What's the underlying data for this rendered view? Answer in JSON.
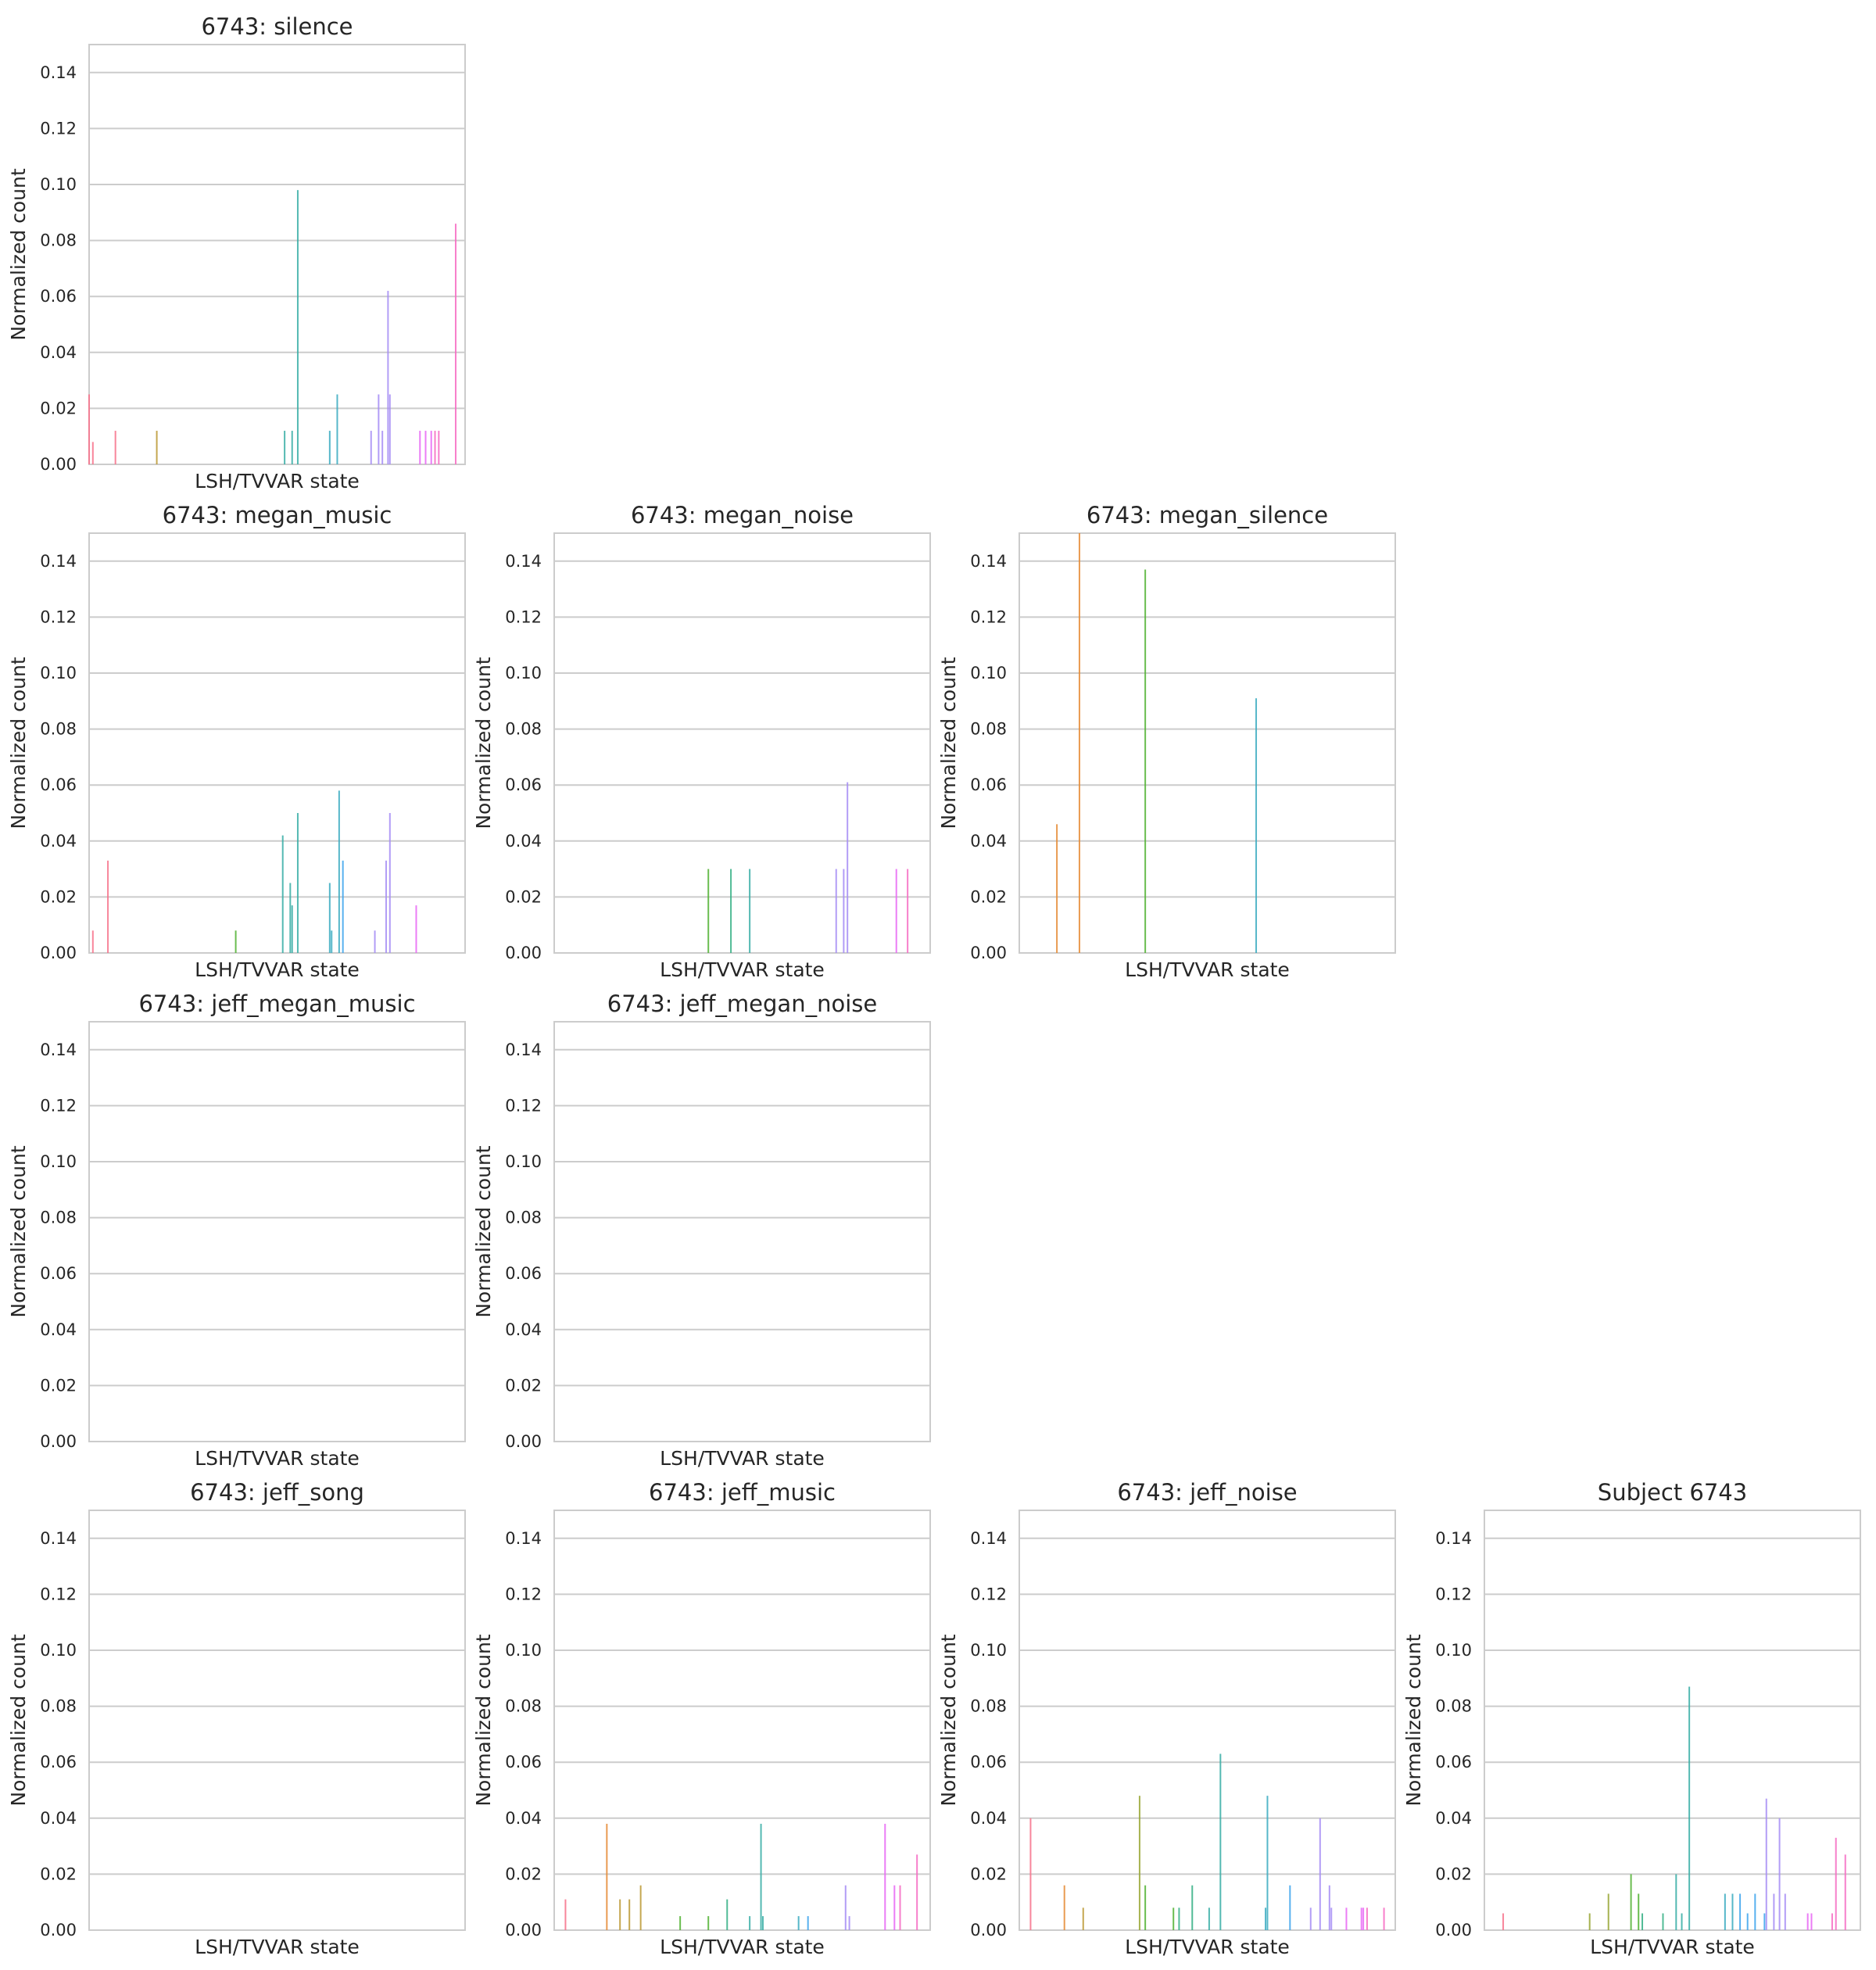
{
  "chart_data": [
    {
      "type": "bar",
      "title": "6743: silence",
      "xlabel": "LSH/TVVAR state",
      "ylabel": "Normalized count",
      "ylim": [
        0,
        0.15
      ],
      "yticks": [
        "0.00",
        "0.02",
        "0.04",
        "0.06",
        "0.08",
        "0.10",
        "0.12",
        "0.14"
      ],
      "x": [
        0.0,
        0.01,
        0.07,
        0.18,
        0.52,
        0.54,
        0.555,
        0.64,
        0.66,
        0.75,
        0.77,
        0.78,
        0.795,
        0.8,
        0.88,
        0.895,
        0.91,
        0.92,
        0.93,
        0.975
      ],
      "values": [
        0.025,
        0.008,
        0.012,
        0.012,
        0.012,
        0.012,
        0.098,
        0.012,
        0.025,
        0.012,
        0.025,
        0.012,
        0.062,
        0.025,
        0.012,
        0.012,
        0.012,
        0.012,
        0.012,
        0.086
      ]
    },
    {
      "type": "bar",
      "title": "6743: megan_music",
      "xlabel": "LSH/TVVAR state",
      "ylabel": "Normalized count",
      "ylim": [
        0,
        0.15
      ],
      "yticks": [
        "0.00",
        "0.02",
        "0.04",
        "0.06",
        "0.08",
        "0.10",
        "0.12",
        "0.14"
      ],
      "x": [
        0.01,
        0.05,
        0.39,
        0.515,
        0.535,
        0.54,
        0.555,
        0.64,
        0.645,
        0.665,
        0.675,
        0.76,
        0.79,
        0.8,
        0.87
      ],
      "values": [
        0.008,
        0.033,
        0.008,
        0.042,
        0.025,
        0.017,
        0.05,
        0.025,
        0.008,
        0.058,
        0.033,
        0.008,
        0.033,
        0.05,
        0.017
      ]
    },
    {
      "type": "bar",
      "title": "6743: megan_noise",
      "xlabel": "LSH/TVVAR state",
      "ylabel": "Normalized count",
      "ylim": [
        0,
        0.15
      ],
      "yticks": [
        "0.00",
        "0.02",
        "0.04",
        "0.06",
        "0.08",
        "0.10",
        "0.12",
        "0.14"
      ],
      "x": [
        0.41,
        0.47,
        0.52,
        0.75,
        0.77,
        0.78,
        0.91,
        0.94
      ],
      "values": [
        0.03,
        0.03,
        0.03,
        0.03,
        0.03,
        0.061,
        0.03,
        0.03
      ]
    },
    {
      "type": "bar",
      "title": "6743: megan_silence",
      "xlabel": "LSH/TVVAR state",
      "ylabel": "Normalized count",
      "ylim": [
        0,
        0.15
      ],
      "yticks": [
        "0.00",
        "0.02",
        "0.04",
        "0.06",
        "0.08",
        "0.10",
        "0.12",
        "0.14"
      ],
      "x": [
        0.1,
        0.16,
        0.335,
        0.63
      ],
      "values": [
        0.046,
        0.15,
        0.137,
        0.091
      ]
    },
    {
      "type": "bar",
      "title": "6743: jeff_megan_music",
      "xlabel": "LSH/TVVAR state",
      "ylabel": "Normalized count",
      "ylim": [
        0,
        0.15
      ],
      "yticks": [
        "0.00",
        "0.02",
        "0.04",
        "0.06",
        "0.08",
        "0.10",
        "0.12",
        "0.14"
      ],
      "x": [],
      "values": []
    },
    {
      "type": "bar",
      "title": "6743: jeff_megan_noise",
      "xlabel": "LSH/TVVAR state",
      "ylabel": "Normalized count",
      "ylim": [
        0,
        0.15
      ],
      "yticks": [
        "0.00",
        "0.02",
        "0.04",
        "0.06",
        "0.08",
        "0.10",
        "0.12",
        "0.14"
      ],
      "x": [],
      "values": []
    },
    {
      "type": "bar",
      "title": "6743: jeff_song",
      "xlabel": "LSH/TVVAR state",
      "ylabel": "Normalized count",
      "ylim": [
        0,
        0.15
      ],
      "yticks": [
        "0.00",
        "0.02",
        "0.04",
        "0.06",
        "0.08",
        "0.10",
        "0.12",
        "0.14"
      ],
      "x": [],
      "values": []
    },
    {
      "type": "bar",
      "title": "6743: jeff_music",
      "xlabel": "LSH/TVVAR state",
      "ylabel": "Normalized count",
      "ylim": [
        0,
        0.15
      ],
      "yticks": [
        "0.00",
        "0.02",
        "0.04",
        "0.06",
        "0.08",
        "0.10",
        "0.12",
        "0.14"
      ],
      "x": [
        0.03,
        0.14,
        0.175,
        0.2,
        0.23,
        0.335,
        0.41,
        0.46,
        0.52,
        0.55,
        0.555,
        0.65,
        0.675,
        0.775,
        0.785,
        0.88,
        0.905,
        0.92,
        0.965
      ],
      "values": [
        0.011,
        0.038,
        0.011,
        0.011,
        0.016,
        0.005,
        0.005,
        0.011,
        0.005,
        0.038,
        0.005,
        0.005,
        0.005,
        0.016,
        0.005,
        0.038,
        0.016,
        0.016,
        0.027
      ]
    },
    {
      "type": "bar",
      "title": "6743: jeff_noise",
      "xlabel": "LSH/TVVAR state",
      "ylabel": "Normalized count",
      "ylim": [
        0,
        0.15
      ],
      "yticks": [
        "0.00",
        "0.02",
        "0.04",
        "0.06",
        "0.08",
        "0.10",
        "0.12",
        "0.14"
      ],
      "x": [
        0.03,
        0.12,
        0.17,
        0.32,
        0.335,
        0.41,
        0.425,
        0.46,
        0.505,
        0.535,
        0.655,
        0.66,
        0.72,
        0.775,
        0.8,
        0.825,
        0.83,
        0.87,
        0.91,
        0.915,
        0.925,
        0.97
      ],
      "values": [
        0.04,
        0.016,
        0.008,
        0.048,
        0.016,
        0.008,
        0.008,
        0.016,
        0.008,
        0.063,
        0.008,
        0.048,
        0.016,
        0.008,
        0.04,
        0.016,
        0.008,
        0.008,
        0.008,
        0.008,
        0.008,
        0.008
      ]
    },
    {
      "type": "bar",
      "title": "Subject 6743",
      "xlabel": "LSH/TVVAR state",
      "ylabel": "Normalized count",
      "ylim": [
        0,
        0.15
      ],
      "yticks": [
        "0.00",
        "0.02",
        "0.04",
        "0.06",
        "0.08",
        "0.10",
        "0.12",
        "0.14"
      ],
      "x": [
        0.05,
        0.28,
        0.33,
        0.39,
        0.41,
        0.42,
        0.475,
        0.51,
        0.525,
        0.545,
        0.64,
        0.66,
        0.68,
        0.7,
        0.72,
        0.745,
        0.75,
        0.77,
        0.785,
        0.8,
        0.86,
        0.87,
        0.925,
        0.935,
        0.96
      ],
      "values": [
        0.006,
        0.006,
        0.013,
        0.02,
        0.013,
        0.006,
        0.006,
        0.02,
        0.006,
        0.087,
        0.013,
        0.013,
        0.013,
        0.006,
        0.013,
        0.006,
        0.047,
        0.013,
        0.04,
        0.013,
        0.006,
        0.006,
        0.006,
        0.033,
        0.027
      ]
    }
  ],
  "colors": [
    "#f77189",
    "#e58a32",
    "#bb9832",
    "#97a431",
    "#50b131",
    "#34af84",
    "#36ada4",
    "#38aabf",
    "#3ba3ec",
    "#a48cf4",
    "#e866f4",
    "#f668c2"
  ],
  "grid_color": "#cccccc",
  "spine_color": "#cccccc"
}
